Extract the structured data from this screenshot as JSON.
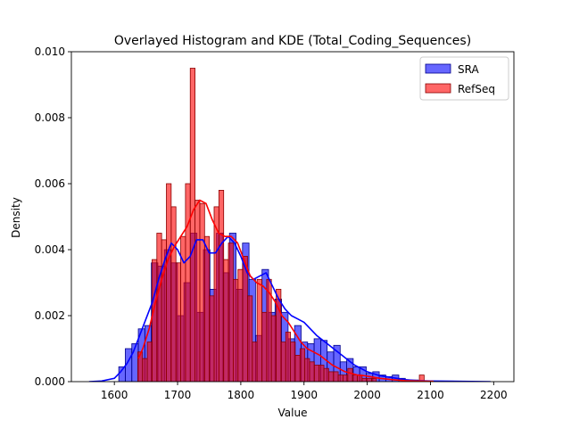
{
  "chart_data": {
    "type": "bar",
    "title": "Overlayed Histogram and KDE (Total_Coding_Sequences)",
    "xlabel": "Value",
    "ylabel": "Density",
    "xlim": [
      1532,
      2232
    ],
    "ylim": [
      0,
      0.01
    ],
    "xticks": [
      1600,
      1700,
      1800,
      1900,
      2000,
      2100,
      2200
    ],
    "yticks": [
      0.0,
      0.002,
      0.004,
      0.006,
      0.008,
      0.01
    ],
    "ytick_labels": [
      "0.000",
      "0.002",
      "0.004",
      "0.006",
      "0.008",
      "0.010"
    ],
    "legend_position": "top-right",
    "colors": {
      "sra_fill": "#0000ff",
      "sra_edge": "#00008b",
      "sra_kde": "#0000ff",
      "refseq_fill": "#ff0000",
      "refseq_edge": "#8b0000",
      "refseq_kde": "#ff0000"
    },
    "series": [
      {
        "name": "SRA",
        "bin_start": 1607,
        "bin_width": 10.3,
        "values": [
          0.00045,
          0.001,
          0.00115,
          0.0016,
          0.0017,
          0.0036,
          0.0035,
          0.004,
          0.0036,
          0.002,
          0.003,
          0.0045,
          0.0021,
          0.004,
          0.0028,
          0.0045,
          0.0033,
          0.0045,
          0.0028,
          0.0042,
          0.0031,
          0.0014,
          0.0034,
          0.0021,
          0.0025,
          0.0021,
          0.0013,
          0.0017,
          0.0012,
          0.00115,
          0.0013,
          0.00125,
          0.0009,
          0.0011,
          0.0006,
          0.0007,
          0.00045,
          0.00045,
          0.00025,
          0.0003,
          0.0002,
          0.00015,
          0.0002,
          0.0001,
          5e-05,
          5e-05
        ]
      },
      {
        "name": "RefSeq",
        "bin_start": 1637,
        "bin_width": 7.55,
        "values": [
          0.0009,
          0.0007,
          0.0012,
          0.0037,
          0.0045,
          0.0043,
          0.006,
          0.0053,
          0.0036,
          0.0044,
          0.006,
          0.0095,
          0.0055,
          0.0054,
          0.0044,
          0.0026,
          0.0053,
          0.0058,
          0.0037,
          0.0042,
          0.0031,
          0.0034,
          0.0038,
          0.0026,
          0.0012,
          0.0031,
          0.0021,
          0.0031,
          0.002,
          0.0028,
          0.0012,
          0.0015,
          0.0012,
          0.0008,
          0.001,
          0.0007,
          0.0006,
          0.0005,
          0.0005,
          0.0004,
          0.0003,
          0.0003,
          0.0002,
          0.0002,
          0.0004,
          0.0002,
          0.0002,
          0.0001,
          0.0001,
          0.0001,
          0.0,
          0.0,
          0.0,
          0.0,
          0.0,
          0.0,
          0.0,
          0.0,
          0.0,
          0.0002
        ]
      }
    ],
    "kde": [
      {
        "name": "SRA",
        "x": [
          1560,
          1580,
          1600,
          1610,
          1620,
          1630,
          1640,
          1650,
          1660,
          1670,
          1680,
          1690,
          1700,
          1710,
          1720,
          1730,
          1740,
          1750,
          1760,
          1770,
          1780,
          1790,
          1800,
          1810,
          1820,
          1830,
          1840,
          1850,
          1860,
          1870,
          1880,
          1890,
          1900,
          1910,
          1920,
          1930,
          1940,
          1950,
          1960,
          1970,
          1980,
          1990,
          2000,
          2020,
          2040,
          2060,
          2080,
          2100,
          2150,
          2195
        ],
        "y": [
          0.0,
          2e-05,
          0.0001,
          0.0003,
          0.00055,
          0.0009,
          0.0014,
          0.0019,
          0.0024,
          0.0031,
          0.0037,
          0.0042,
          0.004,
          0.0036,
          0.0038,
          0.0043,
          0.0043,
          0.0039,
          0.0039,
          0.0042,
          0.0044,
          0.0042,
          0.0038,
          0.0033,
          0.0031,
          0.0032,
          0.0033,
          0.0029,
          0.0025,
          0.0022,
          0.002,
          0.0019,
          0.0018,
          0.0016,
          0.0014,
          0.00125,
          0.0011,
          0.00095,
          0.0008,
          0.00065,
          0.0005,
          0.0004,
          0.0003,
          0.00018,
          0.00012,
          6e-05,
          3e-05,
          2e-05,
          1e-05,
          0.0
        ]
      },
      {
        "name": "RefSeq",
        "x": [
          1638,
          1645,
          1655,
          1665,
          1675,
          1685,
          1695,
          1705,
          1715,
          1725,
          1735,
          1745,
          1755,
          1765,
          1775,
          1785,
          1795,
          1805,
          1815,
          1825,
          1835,
          1845,
          1855,
          1865,
          1875,
          1885,
          1895,
          1905,
          1915,
          1925,
          1935,
          1945,
          1955,
          1965,
          1975,
          1985,
          1995,
          2005,
          2020,
          2040,
          2060,
          2080,
          2105
        ],
        "y": [
          0.0007,
          0.001,
          0.0016,
          0.0024,
          0.0031,
          0.0037,
          0.0041,
          0.0044,
          0.0047,
          0.0052,
          0.0055,
          0.0054,
          0.0049,
          0.0045,
          0.0044,
          0.0044,
          0.0042,
          0.0037,
          0.0032,
          0.003,
          0.0029,
          0.0027,
          0.0024,
          0.002,
          0.0018,
          0.0015,
          0.0012,
          0.001,
          0.0009,
          0.0008,
          0.00065,
          0.0005,
          0.0004,
          0.0003,
          0.00025,
          0.0002,
          0.00018,
          0.00015,
          0.0001,
          6e-05,
          3e-05,
          2e-05,
          1e-05
        ]
      }
    ]
  }
}
